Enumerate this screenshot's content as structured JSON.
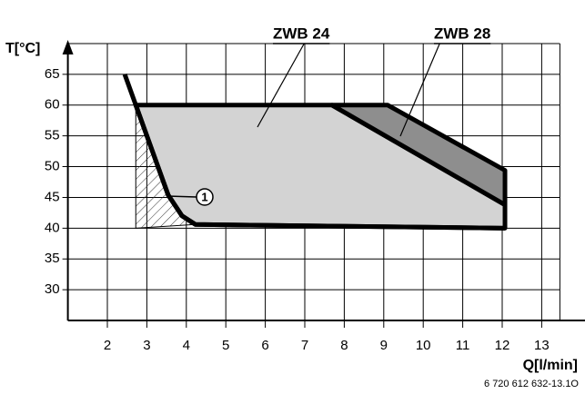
{
  "chart_data": {
    "type": "area",
    "y_label": "T[°C]",
    "x_label": "Q[l/min]",
    "footer": "6 720 612 632-13.1O",
    "xlim": [
      1,
      15
    ],
    "ylim": [
      25,
      70
    ],
    "xticks": [
      2,
      3,
      4,
      5,
      6,
      7,
      8,
      9,
      10,
      11,
      12,
      13
    ],
    "yticks": [
      30,
      35,
      40,
      45,
      50,
      55,
      60,
      65
    ],
    "grid": true,
    "series": [
      {
        "name": "ZWB 24",
        "color": "#d3d3d3",
        "x": [
          2.72,
          7.69,
          12.07,
          12.07,
          4.23,
          3.89,
          3.54
        ],
        "y": [
          60,
          60,
          43.8,
          40,
          40.6,
          42,
          45.4
        ]
      },
      {
        "name": "ZWB 28",
        "color": "#8e8e8e",
        "x": [
          7.69,
          9.1,
          12.07,
          12.07
        ],
        "y": [
          60,
          60,
          49.4,
          43.8
        ]
      }
    ],
    "hatched_area": {
      "x": [
        2.72,
        2.72,
        4.23,
        3.89,
        3.54
      ],
      "y": [
        60,
        40,
        40.6,
        42,
        45.4
      ]
    },
    "limit_curve": {
      "x": [
        2.44,
        3.54,
        3.89,
        4.23,
        12.07
      ],
      "y": [
        65,
        45.4,
        42,
        40.6,
        40
      ]
    },
    "annotation": "1"
  }
}
